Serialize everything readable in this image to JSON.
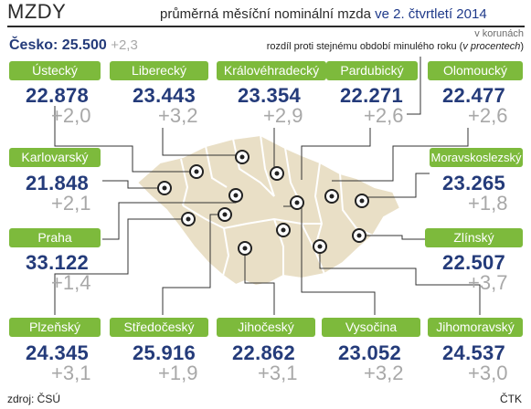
{
  "header": {
    "title": "MZDY",
    "subtitle_prefix": "průměrná měsíční nominální mzda",
    "subtitle_period": "ve 2. čtvrtletí 2014",
    "units": "v korunách",
    "diff_note_prefix": "rozdíl proti stejnému období minulého roku (",
    "diff_note_italic": "v procentech",
    "diff_note_suffix": ")"
  },
  "national": {
    "label": "Česko: 25.500",
    "delta": "+2,3"
  },
  "footer": {
    "source": "zdroj: ČSÚ",
    "agency": "ČTK"
  },
  "colors": {
    "label_bg": "#7dba3c",
    "value": "#243b7a",
    "delta": "#a8a8a8",
    "map_fill": "#e9dfc6",
    "map_border": "#ffffff"
  },
  "regions": [
    {
      "name": "Ústecký",
      "value": "22.878",
      "delta": "+2,0"
    },
    {
      "name": "Liberecký",
      "value": "23.443",
      "delta": "+3,2"
    },
    {
      "name": "Královéhradecký",
      "value": "23.354",
      "delta": "+2,9"
    },
    {
      "name": "Pardubický",
      "value": "22.271",
      "delta": "+2,6"
    },
    {
      "name": "Olomoucký",
      "value": "22.477",
      "delta": "+2,6"
    },
    {
      "name": "Karlovarský",
      "value": "21.848",
      "delta": "+2,1"
    },
    {
      "name": "Moravskoslezský",
      "value": "23.265",
      "delta": "+1,8"
    },
    {
      "name": "Praha",
      "value": "33.122",
      "delta": "+1,4"
    },
    {
      "name": "Zlínský",
      "value": "22.507",
      "delta": "+3,7"
    },
    {
      "name": "Plzeňský",
      "value": "24.345",
      "delta": "+3,1"
    },
    {
      "name": "Středočeský",
      "value": "25.916",
      "delta": "+1,9"
    },
    {
      "name": "Jihočeský",
      "value": "22.862",
      "delta": "+3,1"
    },
    {
      "name": "Vysočina",
      "value": "23.052",
      "delta": "+3,2"
    },
    {
      "name": "Jihomoravský",
      "value": "24.537",
      "delta": "+3,0"
    }
  ],
  "chart_data": {
    "type": "table",
    "title": "MZDY",
    "subtitle": "průměrná měsíční nominální mzda ve 2. čtvrtletí 2014",
    "units": "v korunách",
    "categories": [
      "Ústecký",
      "Liberecký",
      "Královéhradecký",
      "Pardubický",
      "Olomoucký",
      "Karlovarský",
      "Moravskoslezský",
      "Praha",
      "Zlínský",
      "Plzeňský",
      "Středočeský",
      "Jihočeský",
      "Vysočina",
      "Jihomoravský"
    ],
    "series": [
      {
        "name": "průměrná měsíční nominální mzda",
        "values": [
          22878,
          23443,
          23354,
          22271,
          22477,
          21848,
          23265,
          33122,
          22507,
          24345,
          25916,
          22862,
          23052,
          24537
        ]
      },
      {
        "name": "rozdíl proti stejnému období minulého roku",
        "values": [
          2.0,
          3.2,
          2.9,
          2.6,
          2.6,
          2.1,
          1.8,
          1.4,
          3.7,
          3.1,
          1.9,
          3.1,
          3.2,
          3.0
        ]
      }
    ],
    "national": {
      "name": "Česko",
      "value": 25500,
      "delta": 2.3
    }
  }
}
